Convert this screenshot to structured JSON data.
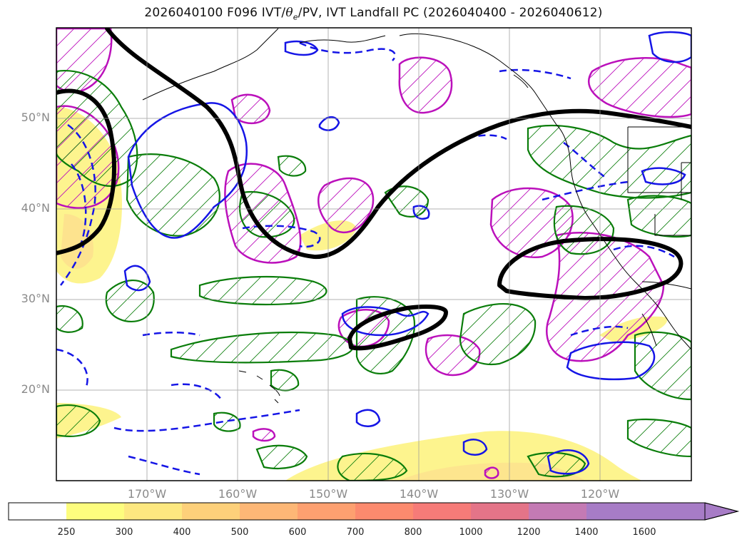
{
  "title": {
    "prefix": "2026040100 F096 IVT/",
    "theta_symbol": "θ",
    "theta_sub": "e",
    "suffix": "/PV, IVT Landfall PC (2026040400 - 2026040612)"
  },
  "map": {
    "lat_labels": [
      "50°N",
      "40°N",
      "30°N",
      "20°N"
    ],
    "lon_labels": [
      "170°W",
      "160°W",
      "150°W",
      "140°W",
      "130°W",
      "120°W"
    ],
    "lat_values": [
      50,
      40,
      30,
      20
    ],
    "lon_values": [
      -170,
      -160,
      -150,
      -140,
      -130,
      -120
    ],
    "extent": {
      "lon_min": -180,
      "lon_max": -110,
      "lat_min": 10,
      "lat_max": 60
    },
    "grid": true
  },
  "colorbar": {
    "labels": [
      "250",
      "300",
      "400",
      "500",
      "600",
      "700",
      "800",
      "1000",
      "1200",
      "1400",
      "1600"
    ],
    "colors": [
      "#ffffff",
      "#fdfd7e",
      "#fde880",
      "#fdd07a",
      "#fdb776",
      "#fda070",
      "#fc8a6e",
      "#f67b78",
      "#e47488",
      "#c47ab4",
      "#a77cc6"
    ],
    "extend": "max"
  },
  "colors": {
    "thick_contour": "#000000",
    "green_contour": "#0a7d0a",
    "blue_contour": "#1515e6",
    "magenta_contour": "#bb10bb",
    "ivt_fill": "#fdf27a"
  }
}
